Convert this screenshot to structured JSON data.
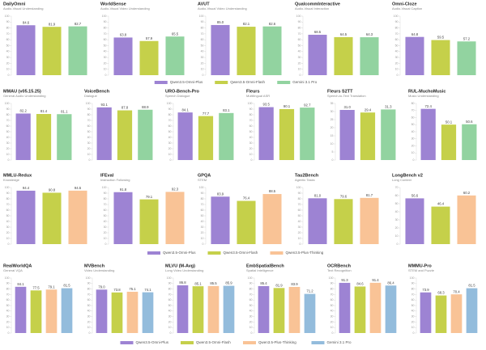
{
  "chart_data": [
    {
      "type": "bar",
      "title": "DailyOmni",
      "subtitle": "Audio-Visual Understanding",
      "ylim": [
        0,
        100
      ],
      "yticks": [
        0,
        10,
        20,
        30,
        40,
        50,
        60,
        70,
        80,
        90,
        100
      ],
      "series": [
        {
          "name": "Qwen3.5-Omni-Plus",
          "color": "#9d83d3",
          "values": [
            84.6
          ]
        },
        {
          "name": "Qwen3.5-Omni-Flash",
          "color": "#c5d04a",
          "values": [
            81.9
          ]
        },
        {
          "name": "Gemini 3.1 Pro",
          "color": "#92d3a0",
          "values": [
            82.7
          ]
        }
      ]
    },
    {
      "type": "bar",
      "title": "WorldSense",
      "subtitle": "Audio-Visual Video Understanding",
      "ylim": [
        0,
        100
      ],
      "yticks": [
        0,
        10,
        20,
        30,
        40,
        50,
        60,
        70,
        80,
        90,
        100
      ],
      "series": [
        {
          "name": "Qwen3.5-Omni-Plus",
          "color": "#9d83d3",
          "values": [
            63.8
          ]
        },
        {
          "name": "Qwen3.5-Omni-Flash",
          "color": "#c5d04a",
          "values": [
            57.9
          ]
        },
        {
          "name": "Gemini 3.1 Pro",
          "color": "#92d3a0",
          "values": [
            65.5
          ]
        }
      ]
    },
    {
      "type": "bar",
      "title": "AVUT",
      "subtitle": "Audio-Visual Video Understanding",
      "ylim": [
        0,
        100
      ],
      "yticks": [
        0,
        10,
        20,
        30,
        40,
        50,
        60,
        70,
        80,
        90,
        100
      ],
      "series": [
        {
          "name": "Qwen3.5-Omni-Plus",
          "color": "#9d83d3",
          "values": [
            85
          ],
          "value_labels": [
            "85.0"
          ]
        },
        {
          "name": "Qwen3.5-Omni-Flash",
          "color": "#c5d04a",
          "values": [
            82.1
          ]
        },
        {
          "name": "Gemini 3.1 Pro",
          "color": "#92d3a0",
          "values": [
            82.6
          ]
        }
      ]
    },
    {
      "type": "bar",
      "title": "QualcommInteractive",
      "subtitle": "Audio-Visual Interaction",
      "ylim": [
        0,
        100
      ],
      "yticks": [
        0,
        10,
        20,
        30,
        40,
        50,
        60,
        70,
        80,
        90,
        100
      ],
      "series": [
        {
          "name": "Qwen3.5-Omni-Plus",
          "color": "#9d83d3",
          "values": [
            68.5
          ]
        },
        {
          "name": "Qwen3.5-Omni-Flash",
          "color": "#c5d04a",
          "values": [
            64.5
          ]
        },
        {
          "name": "Gemini 3.1 Pro",
          "color": "#92d3a0",
          "values": [
            64.3
          ]
        }
      ]
    },
    {
      "type": "bar",
      "title": "Omni-Cloze",
      "subtitle": "Audio-Visual Caption",
      "ylim": [
        0,
        100
      ],
      "yticks": [
        0,
        10,
        20,
        30,
        40,
        50,
        60,
        70,
        80,
        90,
        100
      ],
      "series": [
        {
          "name": "Qwen3.5-Omni-Plus",
          "color": "#9d83d3",
          "values": [
            64.8
          ]
        },
        {
          "name": "Qwen3.5-Omni-Flash",
          "color": "#c5d04a",
          "values": [
            59.5
          ]
        },
        {
          "name": "Gemini 3.1 Pro",
          "color": "#92d3a0",
          "values": [
            57.2
          ]
        }
      ]
    },
    {
      "type": "bar",
      "title": "MMAU (v05.15.25)",
      "subtitle": "General Audio Understanding",
      "ylim": [
        0,
        100
      ],
      "yticks": [
        0,
        10,
        20,
        30,
        40,
        50,
        60,
        70,
        80,
        90,
        100
      ],
      "series": [
        {
          "name": "Qwen3.5-Omni-Plus",
          "color": "#9d83d3",
          "values": [
            82.2
          ]
        },
        {
          "name": "Qwen3.5-Omni-Flash",
          "color": "#c5d04a",
          "values": [
            81.4
          ]
        },
        {
          "name": "Gemini 3.1 Pro",
          "color": "#92d3a0",
          "values": [
            81.1
          ]
        }
      ]
    },
    {
      "type": "bar",
      "title": "VoiceBench",
      "subtitle": "Dialogue",
      "ylim": [
        0,
        100
      ],
      "yticks": [
        0,
        10,
        20,
        30,
        40,
        50,
        60,
        70,
        80,
        90,
        100
      ],
      "series": [
        {
          "name": "Qwen3.5-Omni-Plus",
          "color": "#9d83d3",
          "values": [
            93.1
          ]
        },
        {
          "name": "Qwen3.5-Omni-Flash",
          "color": "#c5d04a",
          "values": [
            87.8
          ]
        },
        {
          "name": "Gemini 3.1 Pro",
          "color": "#92d3a0",
          "values": [
            88.9
          ]
        }
      ]
    },
    {
      "type": "bar",
      "title": "URO-Bench-Pro",
      "subtitle": "Speech Dialogue",
      "ylim": [
        0,
        100
      ],
      "yticks": [
        0,
        10,
        20,
        30,
        40,
        50,
        60,
        70,
        80,
        90,
        100
      ],
      "series": [
        {
          "name": "Qwen3.5-Omni-Plus",
          "color": "#9d83d3",
          "values": [
            84.1
          ]
        },
        {
          "name": "Qwen3.5-Omni-Flash",
          "color": "#c5d04a",
          "values": [
            77.7
          ]
        },
        {
          "name": "Gemini 3.1 Pro",
          "color": "#92d3a0",
          "values": [
            83.1
          ]
        }
      ]
    },
    {
      "type": "bar",
      "title": "Fleurs",
      "subtitle": "Multilingual ASR",
      "ylim": [
        0,
        100
      ],
      "yticks": [
        0,
        10,
        20,
        30,
        40,
        50,
        60,
        70,
        80,
        90,
        100
      ],
      "series": [
        {
          "name": "Qwen3.5-Omni-Plus",
          "color": "#9d83d3",
          "values": [
            93.5
          ]
        },
        {
          "name": "Qwen3.5-Omni-Flash",
          "color": "#c5d04a",
          "values": [
            90.1
          ]
        },
        {
          "name": "Gemini 3.1 Pro",
          "color": "#92d3a0",
          "values": [
            92.7
          ]
        }
      ]
    },
    {
      "type": "bar",
      "title": "Fleurs S2TT",
      "subtitle": "Speech-to-Text Translation",
      "ylim": [
        0,
        35
      ],
      "yticks": [
        0,
        5,
        10,
        15,
        20,
        25,
        30,
        35
      ],
      "series": [
        {
          "name": "Qwen3.5-Omni-Plus",
          "color": "#9d83d3",
          "values": [
            31
          ],
          "value_labels": [
            "31.0"
          ]
        },
        {
          "name": "Qwen3.5-Omni-Flash",
          "color": "#c5d04a",
          "values": [
            29.4
          ]
        },
        {
          "name": "Gemini 3.1 Pro",
          "color": "#92d3a0",
          "values": [
            31.3
          ]
        }
      ]
    },
    {
      "type": "bar",
      "title": "RUL-MuchoMusic",
      "subtitle": "Music Understanding",
      "ylim": [
        0,
        80
      ],
      "yticks": [
        0,
        10,
        20,
        30,
        40,
        50,
        60,
        70,
        80
      ],
      "series": [
        {
          "name": "Qwen3.5-Omni-Plus",
          "color": "#9d83d3",
          "values": [
            72.4
          ]
        },
        {
          "name": "Qwen3.5-Omni-Flash",
          "color": "#c5d04a",
          "values": [
            50.1
          ]
        },
        {
          "name": "Gemini 3.1 Pro",
          "color": "#92d3a0",
          "values": [
            50.6
          ]
        }
      ]
    },
    {
      "type": "bar",
      "title": "MMLU-Redux",
      "subtitle": "Knowledge",
      "ylim": [
        0,
        100
      ],
      "yticks": [
        0,
        10,
        20,
        30,
        40,
        50,
        60,
        70,
        80,
        90,
        100
      ],
      "series": [
        {
          "name": "Qwen3.5-Omni-Plus",
          "color": "#9d83d3",
          "values": [
            94.4
          ]
        },
        {
          "name": "Qwen3.5-Omni-Flash",
          "color": "#c5d04a",
          "values": [
            90.8
          ]
        },
        {
          "name": "Qwen3.5-Plus-Thinking",
          "color": "#f9c396",
          "values": [
            94.5
          ]
        }
      ]
    },
    {
      "type": "bar",
      "title": "IFEval",
      "subtitle": "Instruction Following",
      "ylim": [
        0,
        100
      ],
      "yticks": [
        0,
        10,
        20,
        30,
        40,
        50,
        60,
        70,
        80,
        90,
        100
      ],
      "series": [
        {
          "name": "Qwen3.5-Omni-Plus",
          "color": "#9d83d3",
          "values": [
            91.8
          ]
        },
        {
          "name": "Qwen3.5-Omni-Flash",
          "color": "#c5d04a",
          "values": [
            79.1
          ]
        },
        {
          "name": "Qwen3.5-Plus-Thinking",
          "color": "#f9c396",
          "values": [
            92.3
          ]
        }
      ]
    },
    {
      "type": "bar",
      "title": "GPQA",
      "subtitle": "STEM",
      "ylim": [
        0,
        100
      ],
      "yticks": [
        0,
        10,
        20,
        30,
        40,
        50,
        60,
        70,
        80,
        90,
        100
      ],
      "series": [
        {
          "name": "Qwen3.5-Omni-Plus",
          "color": "#9d83d3",
          "values": [
            83.9
          ]
        },
        {
          "name": "Qwen3.5-Omni-Flash",
          "color": "#c5d04a",
          "values": [
            76.4
          ]
        },
        {
          "name": "Qwen3.5-Plus-Thinking",
          "color": "#f9c396",
          "values": [
            88.5
          ]
        }
      ]
    },
    {
      "type": "bar",
      "title": "Tau2Bench",
      "subtitle": "Agentic Tasks",
      "ylim": [
        0,
        100
      ],
      "yticks": [
        0,
        10,
        20,
        30,
        40,
        50,
        60,
        70,
        80,
        90,
        100
      ],
      "series": [
        {
          "name": "Qwen3.5-Omni-Plus",
          "color": "#9d83d3",
          "values": [
            81
          ],
          "value_labels": [
            "81.0"
          ]
        },
        {
          "name": "Qwen3.5-Omni-Flash",
          "color": "#c5d04a",
          "values": [
            79.6
          ]
        },
        {
          "name": "Qwen3.5-Plus-Thinking",
          "color": "#f9c396",
          "values": [
            81.7
          ]
        }
      ]
    },
    {
      "type": "bar",
      "title": "LongBench v2",
      "subtitle": "Long Context",
      "ylim": [
        0,
        70
      ],
      "yticks": [
        0,
        10,
        20,
        30,
        40,
        50,
        60,
        70
      ],
      "series": [
        {
          "name": "Qwen3.5-Omni-Plus",
          "color": "#9d83d3",
          "values": [
            56.6
          ]
        },
        {
          "name": "Qwen3.5-Omni-Flash",
          "color": "#c5d04a",
          "values": [
            46.4
          ]
        },
        {
          "name": "Qwen3.5-Plus-Thinking",
          "color": "#f9c396",
          "values": [
            60.2
          ]
        }
      ]
    },
    {
      "type": "bar",
      "title": "RealWorldQA",
      "subtitle": "General VQA",
      "ylim": [
        0,
        100
      ],
      "yticks": [
        0,
        10,
        20,
        30,
        40,
        50,
        60,
        70,
        80,
        90,
        100
      ],
      "series": [
        {
          "name": "Qwen3.5-Omni-Plus",
          "color": "#9d83d3",
          "values": [
            84.1
          ]
        },
        {
          "name": "Qwen3.5-Omni-Flash",
          "color": "#c5d04a",
          "values": [
            77.5
          ]
        },
        {
          "name": "Qwen3.5-Plus-Thinking",
          "color": "#f9c396",
          "values": [
            79.1
          ]
        },
        {
          "name": "Gemini 3.1 Pro",
          "color": "#93bcdc",
          "values": [
            81.5
          ]
        }
      ]
    },
    {
      "type": "bar",
      "title": "MVBench",
      "subtitle": "Video Understanding",
      "ylim": [
        0,
        100
      ],
      "yticks": [
        0,
        10,
        20,
        30,
        40,
        50,
        60,
        70,
        80,
        90,
        100
      ],
      "series": [
        {
          "name": "Qwen3.5-Omni-Plus",
          "color": "#9d83d3",
          "values": [
            79
          ],
          "value_labels": [
            "79.0"
          ]
        },
        {
          "name": "Qwen3.5-Omni-Flash",
          "color": "#c5d04a",
          "values": [
            73.8
          ]
        },
        {
          "name": "Qwen3.5-Plus-Thinking",
          "color": "#f9c396",
          "values": [
            75.1
          ]
        },
        {
          "name": "Gemini 3.1 Pro",
          "color": "#93bcdc",
          "values": [
            74.1
          ]
        }
      ]
    },
    {
      "type": "bar",
      "title": "MLVU (M-Avg)",
      "subtitle": "Long Video Understanding",
      "ylim": [
        0,
        100
      ],
      "yticks": [
        0,
        10,
        20,
        30,
        40,
        50,
        60,
        70,
        80,
        90,
        100
      ],
      "series": [
        {
          "name": "Qwen3.5-Omni-Plus",
          "color": "#9d83d3",
          "values": [
            86.8
          ]
        },
        {
          "name": "Qwen3.5-Omni-Flash",
          "color": "#c5d04a",
          "values": [
            85.1
          ]
        },
        {
          "name": "Qwen3.5-Plus-Thinking",
          "color": "#f9c396",
          "values": [
            85.5
          ]
        },
        {
          "name": "Gemini 3.1 Pro",
          "color": "#93bcdc",
          "values": [
            85.9
          ]
        }
      ]
    },
    {
      "type": "bar",
      "title": "EmbSpatialBench",
      "subtitle": "Spatial Intelligence",
      "ylim": [
        0,
        100
      ],
      "yticks": [
        0,
        10,
        20,
        30,
        40,
        50,
        60,
        70,
        80,
        90,
        100
      ],
      "series": [
        {
          "name": "Qwen3.5-Omni-Plus",
          "color": "#9d83d3",
          "values": [
            85.4
          ]
        },
        {
          "name": "Qwen3.5-Omni-Flash",
          "color": "#c5d04a",
          "values": [
            81.9
          ]
        },
        {
          "name": "Qwen3.5-Plus-Thinking",
          "color": "#f9c396",
          "values": [
            83.9
          ]
        },
        {
          "name": "Gemini 3.1 Pro",
          "color": "#93bcdc",
          "values": [
            71.2
          ]
        }
      ]
    },
    {
      "type": "bar",
      "title": "OCRBench",
      "subtitle": "Text Recognition",
      "ylim": [
        0,
        100
      ],
      "yticks": [
        0,
        10,
        20,
        30,
        40,
        50,
        60,
        70,
        80,
        90,
        100
      ],
      "series": [
        {
          "name": "Qwen3.5-Omni-Plus",
          "color": "#9d83d3",
          "values": [
            91.3
          ]
        },
        {
          "name": "Qwen3.5-Omni-Flash",
          "color": "#c5d04a",
          "values": [
            84.6
          ]
        },
        {
          "name": "Qwen3.5-Plus-Thinking",
          "color": "#f9c396",
          "values": [
            91.4
          ]
        },
        {
          "name": "Gemini 3.1 Pro",
          "color": "#93bcdc",
          "values": [
            86.4
          ]
        }
      ]
    },
    {
      "type": "bar",
      "title": "MMMU-Pro",
      "subtitle": "STEM and Puzzle",
      "ylim": [
        0,
        100
      ],
      "yticks": [
        0,
        10,
        20,
        30,
        40,
        50,
        60,
        70,
        80,
        90,
        100
      ],
      "series": [
        {
          "name": "Qwen3.5-Omni-Plus",
          "color": "#9d83d3",
          "values": [
            73.9
          ]
        },
        {
          "name": "Qwen3.5-Omni-Flash",
          "color": "#c5d04a",
          "values": [
            68.3
          ]
        },
        {
          "name": "Qwen3.5-Plus-Thinking",
          "color": "#f9c396",
          "values": [
            70.4
          ]
        },
        {
          "name": "Gemini 3.1 Pro",
          "color": "#93bcdc",
          "values": [
            81.5
          ]
        }
      ]
    }
  ]
}
